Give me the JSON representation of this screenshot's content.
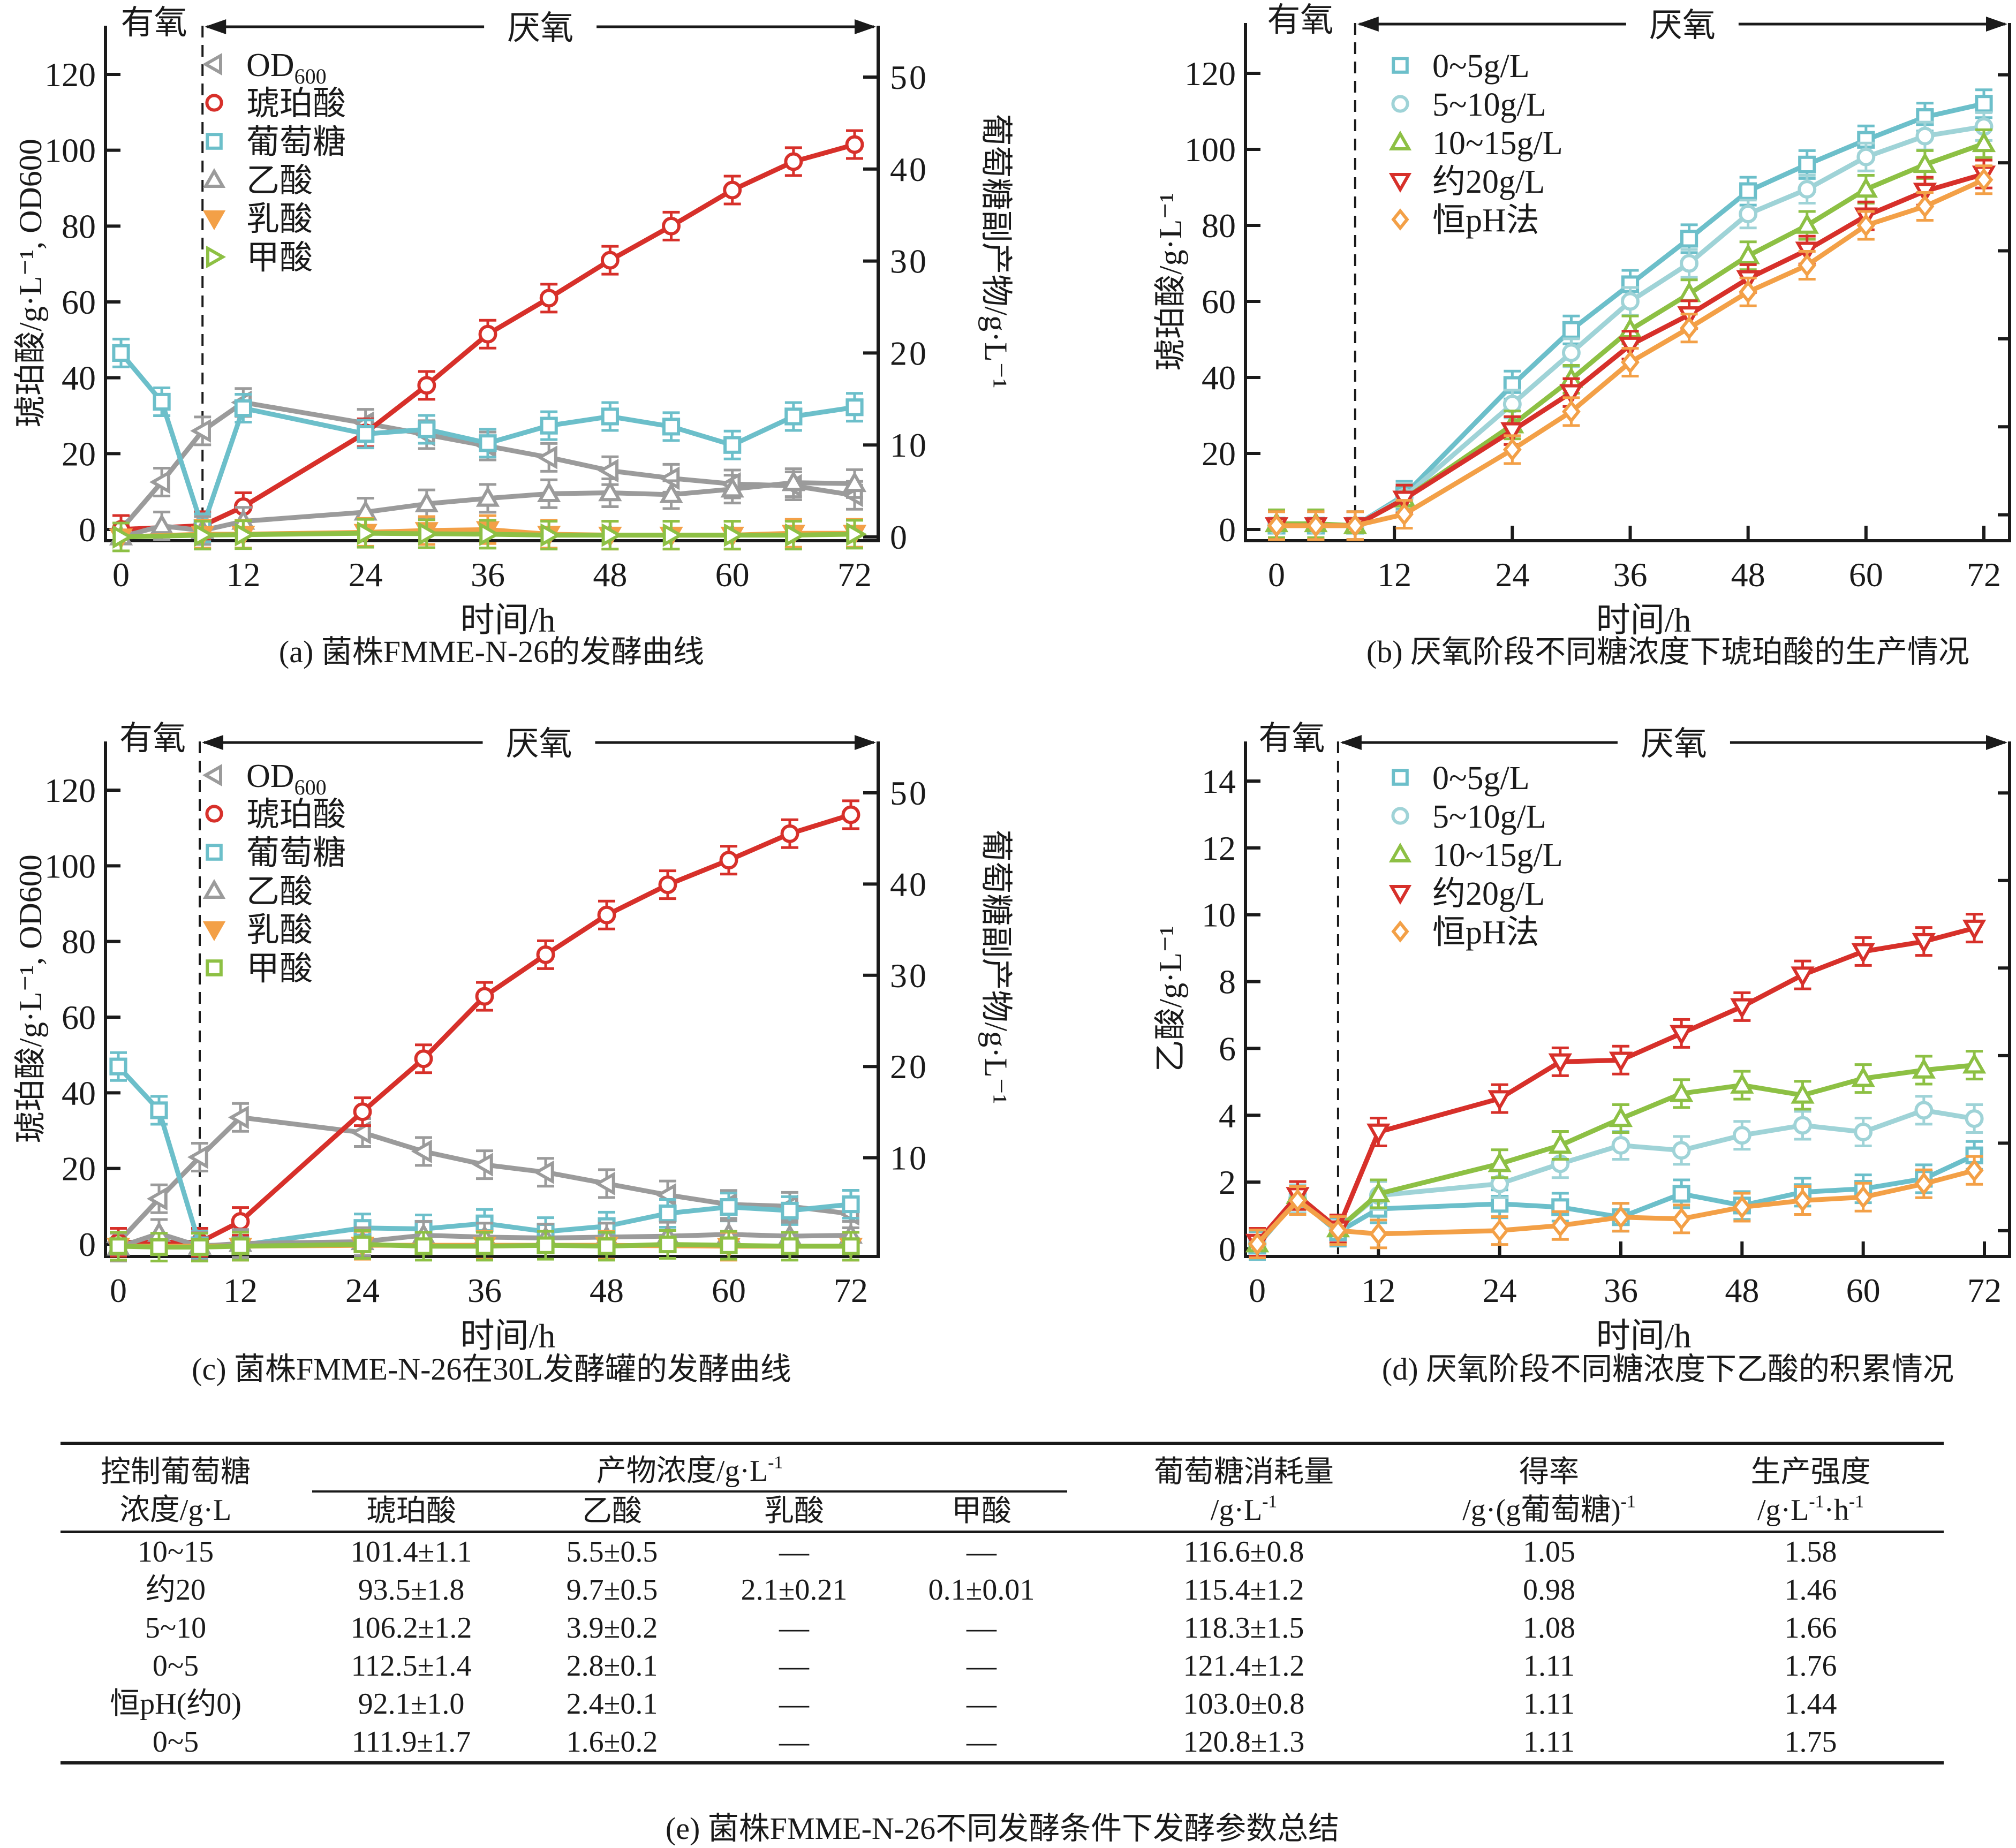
{
  "figure_captions": {
    "a": "(a) 菌株FMME-N-26的发酵曲线",
    "b": "(b) 厌氧阶段不同糖浓度下琥珀酸的生产情况",
    "c": "(c) 菌株FMME-N-26在30L发酵罐的发酵曲线",
    "d": "(d) 厌氧阶段不同糖浓度下乙酸的积累情况",
    "e": "(e) 菌株FMME-N-26不同发酵条件下发酵参数总结"
  },
  "phase_labels": {
    "aerobic": "有氧",
    "anaerobic": "厌氧"
  },
  "colors": {
    "gray": "#9b9b9b",
    "red": "#d7302a",
    "cyan": "#6cbfca",
    "lightcyan": "#9fd3d7",
    "orange": "#f3a047",
    "green": "#8dc044",
    "axis": "#1a1a1a"
  },
  "chart_data": [
    {
      "id": "a",
      "type": "line",
      "title": "(a) 菌株FMME-N-26的发酵曲线",
      "xlabel": "时间/h",
      "ylabel": "琥珀酸/g·L⁻¹, OD600",
      "y2label": "葡萄糖副产物/g·L⁻¹",
      "xlim": [
        0,
        72
      ],
      "ylim": [
        0,
        130
      ],
      "y2lim": [
        0,
        54
      ],
      "xticks": [
        0,
        12,
        24,
        36,
        48,
        60,
        72
      ],
      "yticks": [
        0,
        20,
        40,
        60,
        80,
        100,
        120
      ],
      "y2ticks": [
        0,
        10,
        20,
        30,
        40,
        50
      ],
      "phase_boundary_h": 8,
      "legend_position": "top-left",
      "grid": false,
      "series": [
        {
          "name": "OD600",
          "marker": "triangle-left",
          "color": "gray",
          "axis": "left",
          "x": [
            0,
            4,
            8,
            12,
            24,
            30,
            36,
            42,
            48,
            54,
            60,
            66,
            72
          ],
          "y": [
            0,
            12.5,
            26,
            33.5,
            28,
            25,
            22,
            19,
            15.5,
            13.5,
            12,
            11.5,
            9
          ]
        },
        {
          "name": "琥珀酸",
          "marker": "circle",
          "color": "red",
          "axis": "left",
          "x": [
            0,
            8,
            12,
            24,
            30,
            36,
            42,
            48,
            54,
            60,
            66,
            72
          ],
          "y": [
            0,
            1,
            6,
            25.5,
            38,
            51.5,
            61,
            71,
            80,
            89.5,
            97,
            101.5
          ]
        },
        {
          "name": "葡萄糖",
          "marker": "square",
          "color": "cyan",
          "axis": "right",
          "x": [
            0,
            4,
            8,
            12,
            24,
            30,
            36,
            42,
            48,
            54,
            60,
            66,
            72
          ],
          "y": [
            20,
            14.7,
            1,
            14,
            11.2,
            11.7,
            10.2,
            12.1,
            13.1,
            12,
            10,
            13.1,
            14.1
          ]
        },
        {
          "name": "乙酸",
          "marker": "triangle-up",
          "color": "gray",
          "axis": "right",
          "x": [
            0,
            4,
            8,
            12,
            24,
            30,
            36,
            42,
            48,
            54,
            60,
            66,
            72
          ],
          "y": [
            0,
            1.2,
            0.7,
            1.7,
            2.7,
            3.6,
            4.2,
            4.7,
            4.8,
            4.6,
            5.2,
            5.9,
            5.8
          ]
        },
        {
          "name": "乳酸",
          "marker": "triangle-down-filled",
          "color": "orange",
          "axis": "right",
          "x": [
            0,
            8,
            12,
            24,
            30,
            36,
            42,
            48,
            54,
            60,
            66,
            72
          ],
          "y": [
            0,
            0.3,
            0.3,
            0.5,
            0.7,
            0.8,
            0.3,
            0.2,
            0.2,
            0.2,
            0.4,
            0.4
          ]
        },
        {
          "name": "甲酸",
          "marker": "triangle-right",
          "color": "green",
          "axis": "right",
          "x": [
            0,
            8,
            12,
            24,
            30,
            36,
            42,
            48,
            54,
            60,
            66,
            72
          ],
          "y": [
            0,
            0.2,
            0.25,
            0.4,
            0.35,
            0.3,
            0.2,
            0.2,
            0.2,
            0.2,
            0.2,
            0.3
          ]
        }
      ]
    },
    {
      "id": "b",
      "type": "line",
      "title": "(b) 厌氧阶段不同糖浓度下琥珀酸的生产情况",
      "xlabel": "时间/h",
      "ylabel": "琥珀酸/g·L⁻¹",
      "xlim": [
        -5,
        74
      ],
      "ylim": [
        -3,
        130
      ],
      "xticks": [
        0,
        12,
        24,
        36,
        48,
        60,
        72
      ],
      "yticks": [
        0,
        20,
        40,
        60,
        80,
        100,
        120
      ],
      "phase_boundary_h": 8,
      "legend_position": "top-left",
      "grid": false,
      "series": [
        {
          "name": "0~5g/L",
          "marker": "square",
          "color": "cyan",
          "x": [
            0,
            4,
            8,
            13,
            24,
            30,
            36,
            42,
            48,
            54,
            60,
            66,
            72
          ],
          "y": [
            1,
            1,
            1,
            9,
            38,
            52.5,
            64.5,
            76.5,
            89,
            96,
            102.5,
            108.5,
            112
          ]
        },
        {
          "name": "5~10g/L",
          "marker": "circle",
          "color": "lightcyan",
          "x": [
            0,
            4,
            8,
            13,
            24,
            30,
            36,
            42,
            48,
            54,
            60,
            66,
            72
          ],
          "y": [
            1,
            1,
            1,
            8.5,
            33,
            46.5,
            60,
            70,
            83,
            89.5,
            98,
            103.5,
            106
          ]
        },
        {
          "name": "10~15g/L",
          "marker": "triangle-up",
          "color": "green",
          "x": [
            0,
            4,
            8,
            13,
            24,
            30,
            36,
            42,
            48,
            54,
            60,
            66,
            72
          ],
          "y": [
            1.5,
            1.5,
            1,
            8,
            27.5,
            39.5,
            52.5,
            62,
            72,
            80,
            89.5,
            96,
            101.5
          ]
        },
        {
          "name": "约20g/L",
          "marker": "triangle-down",
          "color": "red",
          "x": [
            0,
            4,
            8,
            13,
            24,
            30,
            36,
            42,
            48,
            54,
            60,
            66,
            72
          ],
          "y": [
            1,
            1,
            1,
            8,
            26,
            36,
            48.5,
            56.5,
            66,
            73.5,
            82.5,
            89,
            93.5
          ]
        },
        {
          "name": "恒pH法",
          "marker": "diamond",
          "color": "orange",
          "x": [
            0,
            4,
            8,
            13,
            24,
            30,
            36,
            42,
            48,
            54,
            60,
            66,
            72
          ],
          "y": [
            1,
            1,
            1,
            4,
            21,
            31,
            44,
            53,
            62.5,
            69.5,
            80,
            85,
            92
          ]
        }
      ]
    },
    {
      "id": "c",
      "type": "line",
      "title": "(c) 菌株FMME-N-26在30L发酵罐的发酵曲线",
      "xlabel": "时间/h",
      "ylabel": "琥珀酸/g·L⁻¹, OD600",
      "y2label": "葡萄糖副产物/g·L⁻¹",
      "xlim": [
        0,
        72
      ],
      "ylim": [
        0,
        130
      ],
      "y2lim": [
        0,
        54
      ],
      "xticks": [
        0,
        12,
        24,
        36,
        48,
        60,
        72
      ],
      "yticks": [
        0,
        20,
        40,
        60,
        80,
        100,
        120
      ],
      "y2ticks": [
        10,
        20,
        30,
        40,
        50
      ],
      "phase_boundary_h": 8,
      "legend_position": "top-left",
      "grid": false,
      "series": [
        {
          "name": "OD600",
          "marker": "triangle-left",
          "color": "gray",
          "axis": "left",
          "x": [
            0,
            4,
            8,
            12,
            24,
            30,
            36,
            42,
            48,
            54,
            60,
            66,
            72
          ],
          "y": [
            0.5,
            12,
            23,
            33.5,
            29.5,
            24.5,
            21,
            19,
            16,
            13,
            10.5,
            10,
            8
          ]
        },
        {
          "name": "琥珀酸",
          "marker": "circle",
          "color": "red",
          "axis": "left",
          "x": [
            0,
            8,
            12,
            24,
            30,
            36,
            42,
            48,
            54,
            60,
            66,
            72
          ],
          "y": [
            0.5,
            0.5,
            6,
            35,
            49,
            65.5,
            76.5,
            87,
            95,
            101.5,
            108.5,
            113.5
          ]
        },
        {
          "name": "葡萄糖",
          "marker": "square",
          "color": "cyan",
          "axis": "right",
          "x": [
            0,
            4,
            8,
            12,
            24,
            30,
            36,
            42,
            48,
            54,
            60,
            66,
            72
          ],
          "y": [
            20,
            15.2,
            0.4,
            0.4,
            2.3,
            2.2,
            2.8,
            1.9,
            2.5,
            3.9,
            4.6,
            4.2,
            4.9
          ]
        },
        {
          "name": "乙酸",
          "marker": "triangle-up",
          "color": "gray",
          "axis": "right",
          "x": [
            0,
            4,
            8,
            12,
            24,
            30,
            36,
            42,
            48,
            54,
            60,
            66,
            72
          ],
          "y": [
            0.2,
            1.7,
            0.3,
            0.6,
            0.8,
            1.5,
            1.3,
            1.2,
            1.3,
            1.4,
            1.6,
            1.4,
            1.5
          ]
        },
        {
          "name": "乳酸",
          "marker": "triangle-down-filled",
          "color": "orange",
          "axis": "right",
          "x": [
            0,
            12,
            24,
            36,
            48,
            60,
            72
          ],
          "y": [
            0.3,
            0.3,
            0.4,
            0.4,
            0.4,
            0.3,
            0.3
          ]
        },
        {
          "name": "甲酸",
          "marker": "square",
          "color": "green",
          "axis": "right",
          "x": [
            0,
            4,
            8,
            12,
            24,
            30,
            36,
            42,
            48,
            54,
            60,
            66,
            72
          ],
          "y": [
            0.3,
            0.2,
            0.2,
            0.3,
            0.5,
            0.3,
            0.3,
            0.4,
            0.3,
            0.5,
            0.4,
            0.3,
            0.3
          ]
        }
      ]
    },
    {
      "id": "d",
      "type": "line",
      "title": "(d) 厌氧阶段不同糖浓度下乙酸的积累情况",
      "xlabel": "时间/h",
      "ylabel": "乙酸/g·L⁻¹",
      "xlim": [
        -1,
        74
      ],
      "ylim": [
        0,
        15
      ],
      "xticks": [
        0,
        12,
        24,
        36,
        48,
        60,
        72
      ],
      "yticks": [
        0,
        2,
        4,
        6,
        8,
        10,
        12,
        14
      ],
      "phase_boundary_h": 8,
      "legend_position": "top-left",
      "grid": false,
      "series": [
        {
          "name": "0~5g/L",
          "marker": "square",
          "color": "cyan",
          "x": [
            0,
            4,
            8,
            12,
            24,
            30,
            36,
            42,
            48,
            54,
            60,
            66,
            71
          ],
          "y": [
            0.1,
            1.5,
            0.5,
            1.2,
            1.35,
            1.25,
            0.95,
            1.65,
            1.3,
            1.7,
            1.8,
            2.1,
            2.8
          ]
        },
        {
          "name": "5~10g/L",
          "marker": "circle",
          "color": "lightcyan",
          "x": [
            0,
            4,
            8,
            12,
            24,
            30,
            36,
            42,
            48,
            54,
            60,
            66,
            71
          ],
          "y": [
            0.15,
            1.5,
            0.6,
            1.6,
            1.95,
            2.55,
            3.1,
            2.95,
            3.4,
            3.7,
            3.5,
            4.15,
            3.9
          ]
        },
        {
          "name": "10~15g/L",
          "marker": "triangle-up",
          "color": "green",
          "x": [
            0,
            4,
            8,
            12,
            24,
            30,
            36,
            42,
            48,
            54,
            60,
            66,
            71
          ],
          "y": [
            0.15,
            1.6,
            0.6,
            1.65,
            2.55,
            3.1,
            3.9,
            4.65,
            4.9,
            4.6,
            5.1,
            5.35,
            5.5
          ]
        },
        {
          "name": "约20g/L",
          "marker": "triangle-down",
          "color": "red",
          "x": [
            0,
            4,
            8,
            12,
            24,
            30,
            36,
            42,
            48,
            54,
            60,
            66,
            71
          ],
          "y": [
            0.2,
            1.6,
            0.6,
            3.5,
            4.5,
            5.6,
            5.65,
            6.45,
            7.25,
            8.2,
            8.9,
            9.2,
            9.6
          ]
        },
        {
          "name": "恒pH法",
          "marker": "diamond",
          "color": "orange",
          "x": [
            0,
            4,
            8,
            12,
            24,
            30,
            36,
            42,
            48,
            54,
            60,
            66,
            71
          ],
          "y": [
            0.15,
            1.45,
            0.55,
            0.45,
            0.55,
            0.7,
            0.95,
            0.9,
            1.25,
            1.45,
            1.55,
            1.95,
            2.35
          ]
        }
      ]
    }
  ],
  "table": {
    "caption": "(e) 菌株FMME-N-26不同发酵条件下发酵参数总结",
    "group_header": "产物浓度/g·L",
    "group_header_sup": "-1",
    "col_condition_line1": "控制葡萄糖",
    "col_condition_line2": "浓度/g·L",
    "subcolumns": [
      "琥珀酸",
      "乙酸",
      "乳酸",
      "甲酸"
    ],
    "col_glucose_line1": "葡萄糖消耗量",
    "col_glucose_line2": "/g·L",
    "col_glucose_sup": "-1",
    "col_yield_line1": "得率",
    "col_yield_line2": "/g·(g葡萄糖)",
    "col_yield_sup": "-1",
    "col_prod_line1": "生产强度",
    "col_prod_line2a": "/g·L",
    "col_prod_sup1": "-1",
    "col_prod_line2b": "·h",
    "col_prod_sup2": "-1",
    "rows": [
      {
        "condition": "10~15",
        "succinic": "101.4±1.1",
        "acetic": "5.5±0.5",
        "lactic": "—",
        "formic": "—",
        "glucose": "116.6±0.8",
        "yield": "1.05",
        "productivity": "1.58"
      },
      {
        "condition": "约20",
        "succinic": "93.5±1.8",
        "acetic": "9.7±0.5",
        "lactic": "2.1±0.21",
        "formic": "0.1±0.01",
        "glucose": "115.4±1.2",
        "yield": "0.98",
        "productivity": "1.46"
      },
      {
        "condition": "5~10",
        "succinic": "106.2±1.2",
        "acetic": "3.9±0.2",
        "lactic": "—",
        "formic": "—",
        "glucose": "118.3±1.5",
        "yield": "1.08",
        "productivity": "1.66"
      },
      {
        "condition": "0~5",
        "succinic": "112.5±1.4",
        "acetic": "2.8±0.1",
        "lactic": "—",
        "formic": "—",
        "glucose": "121.4±1.2",
        "yield": "1.11",
        "productivity": "1.76"
      },
      {
        "condition": "恒pH(约0)",
        "succinic": "92.1±1.0",
        "acetic": "2.4±0.1",
        "lactic": "—",
        "formic": "—",
        "glucose": "103.0±0.8",
        "yield": "1.11",
        "productivity": "1.44"
      },
      {
        "condition": "0~5",
        "succinic": "111.9±1.7",
        "acetic": "1.6±0.2",
        "lactic": "—",
        "formic": "—",
        "glucose": "120.8±1.3",
        "yield": "1.11",
        "productivity": "1.75"
      }
    ]
  }
}
